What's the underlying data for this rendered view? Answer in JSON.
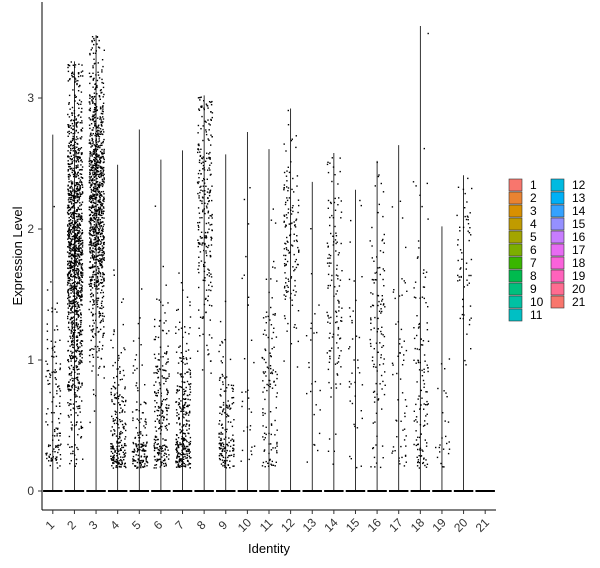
{
  "chart_data": {
    "type": "violin",
    "subtype": "single-cell violin plot with jittered points (expression per identity cluster)",
    "title": "",
    "xlabel": "Identity",
    "ylabel": "Expression Level",
    "categories": [
      "1",
      "2",
      "3",
      "4",
      "5",
      "6",
      "7",
      "8",
      "9",
      "10",
      "11",
      "12",
      "13",
      "14",
      "15",
      "16",
      "17",
      "18",
      "19",
      "20",
      "21"
    ],
    "y_ticks": [
      0,
      1,
      2,
      3
    ],
    "ylim": [
      -0.15,
      3.7
    ],
    "grid": false,
    "legend_position": "right",
    "legend_columns": 2,
    "colors": [
      "#F8766D",
      "#EA8331",
      "#D89000",
      "#C09B00",
      "#A3A500",
      "#7CAE00",
      "#39B600",
      "#00BB4E",
      "#00BF7D",
      "#00C1A3",
      "#00BFC4",
      "#00BAE0",
      "#00B0F6",
      "#35A2FF",
      "#9590FF",
      "#C77CFF",
      "#E76BF3",
      "#FA62DB",
      "#FF62BC",
      "#FF6C91",
      "#F8766D"
    ],
    "series": [
      {
        "name": "1",
        "max": 2.72,
        "n_points": 130,
        "center": 0.65,
        "spread": 0.55
      },
      {
        "name": "2",
        "max": 3.28,
        "n_points": 1300,
        "center": 1.85,
        "spread": 0.65
      },
      {
        "name": "3",
        "max": 3.48,
        "n_points": 1050,
        "center": 2.2,
        "spread": 0.55
      },
      {
        "name": "4",
        "max": 2.49,
        "n_points": 220,
        "center": 0.4,
        "spread": 0.45
      },
      {
        "name": "5",
        "max": 2.76,
        "n_points": 150,
        "center": 0.3,
        "spread": 0.45
      },
      {
        "name": "6",
        "max": 2.53,
        "n_points": 230,
        "center": 0.55,
        "spread": 0.45
      },
      {
        "name": "7",
        "max": 2.6,
        "n_points": 300,
        "center": 0.5,
        "spread": 0.45
      },
      {
        "name": "8",
        "max": 3.02,
        "n_points": 260,
        "center": 2.2,
        "spread": 0.55
      },
      {
        "name": "9",
        "max": 2.57,
        "n_points": 160,
        "center": 0.45,
        "spread": 0.35
      },
      {
        "name": "10",
        "max": 2.74,
        "n_points": 30,
        "center": 0.9,
        "spread": 0.7
      },
      {
        "name": "11",
        "max": 2.61,
        "n_points": 120,
        "center": 0.8,
        "spread": 0.6
      },
      {
        "name": "12",
        "max": 2.92,
        "n_points": 140,
        "center": 1.95,
        "spread": 0.4
      },
      {
        "name": "13",
        "max": 2.36,
        "n_points": 25,
        "center": 0.9,
        "spread": 0.6
      },
      {
        "name": "14",
        "max": 2.58,
        "n_points": 130,
        "center": 1.6,
        "spread": 0.5
      },
      {
        "name": "15",
        "max": 2.3,
        "n_points": 40,
        "center": 1.0,
        "spread": 0.6
      },
      {
        "name": "16",
        "max": 2.52,
        "n_points": 120,
        "center": 1.3,
        "spread": 0.6
      },
      {
        "name": "17",
        "max": 2.64,
        "n_points": 60,
        "center": 0.9,
        "spread": 0.6
      },
      {
        "name": "18",
        "max": 3.55,
        "n_points": 130,
        "center": 0.9,
        "spread": 0.8
      },
      {
        "name": "19",
        "max": 2.02,
        "n_points": 25,
        "center": 0.35,
        "spread": 0.3
      },
      {
        "name": "20",
        "max": 2.41,
        "n_points": 60,
        "center": 1.75,
        "spread": 0.4
      },
      {
        "name": "21",
        "max": 0.0,
        "n_points": 0,
        "center": 0.0,
        "spread": 0.0
      }
    ]
  }
}
